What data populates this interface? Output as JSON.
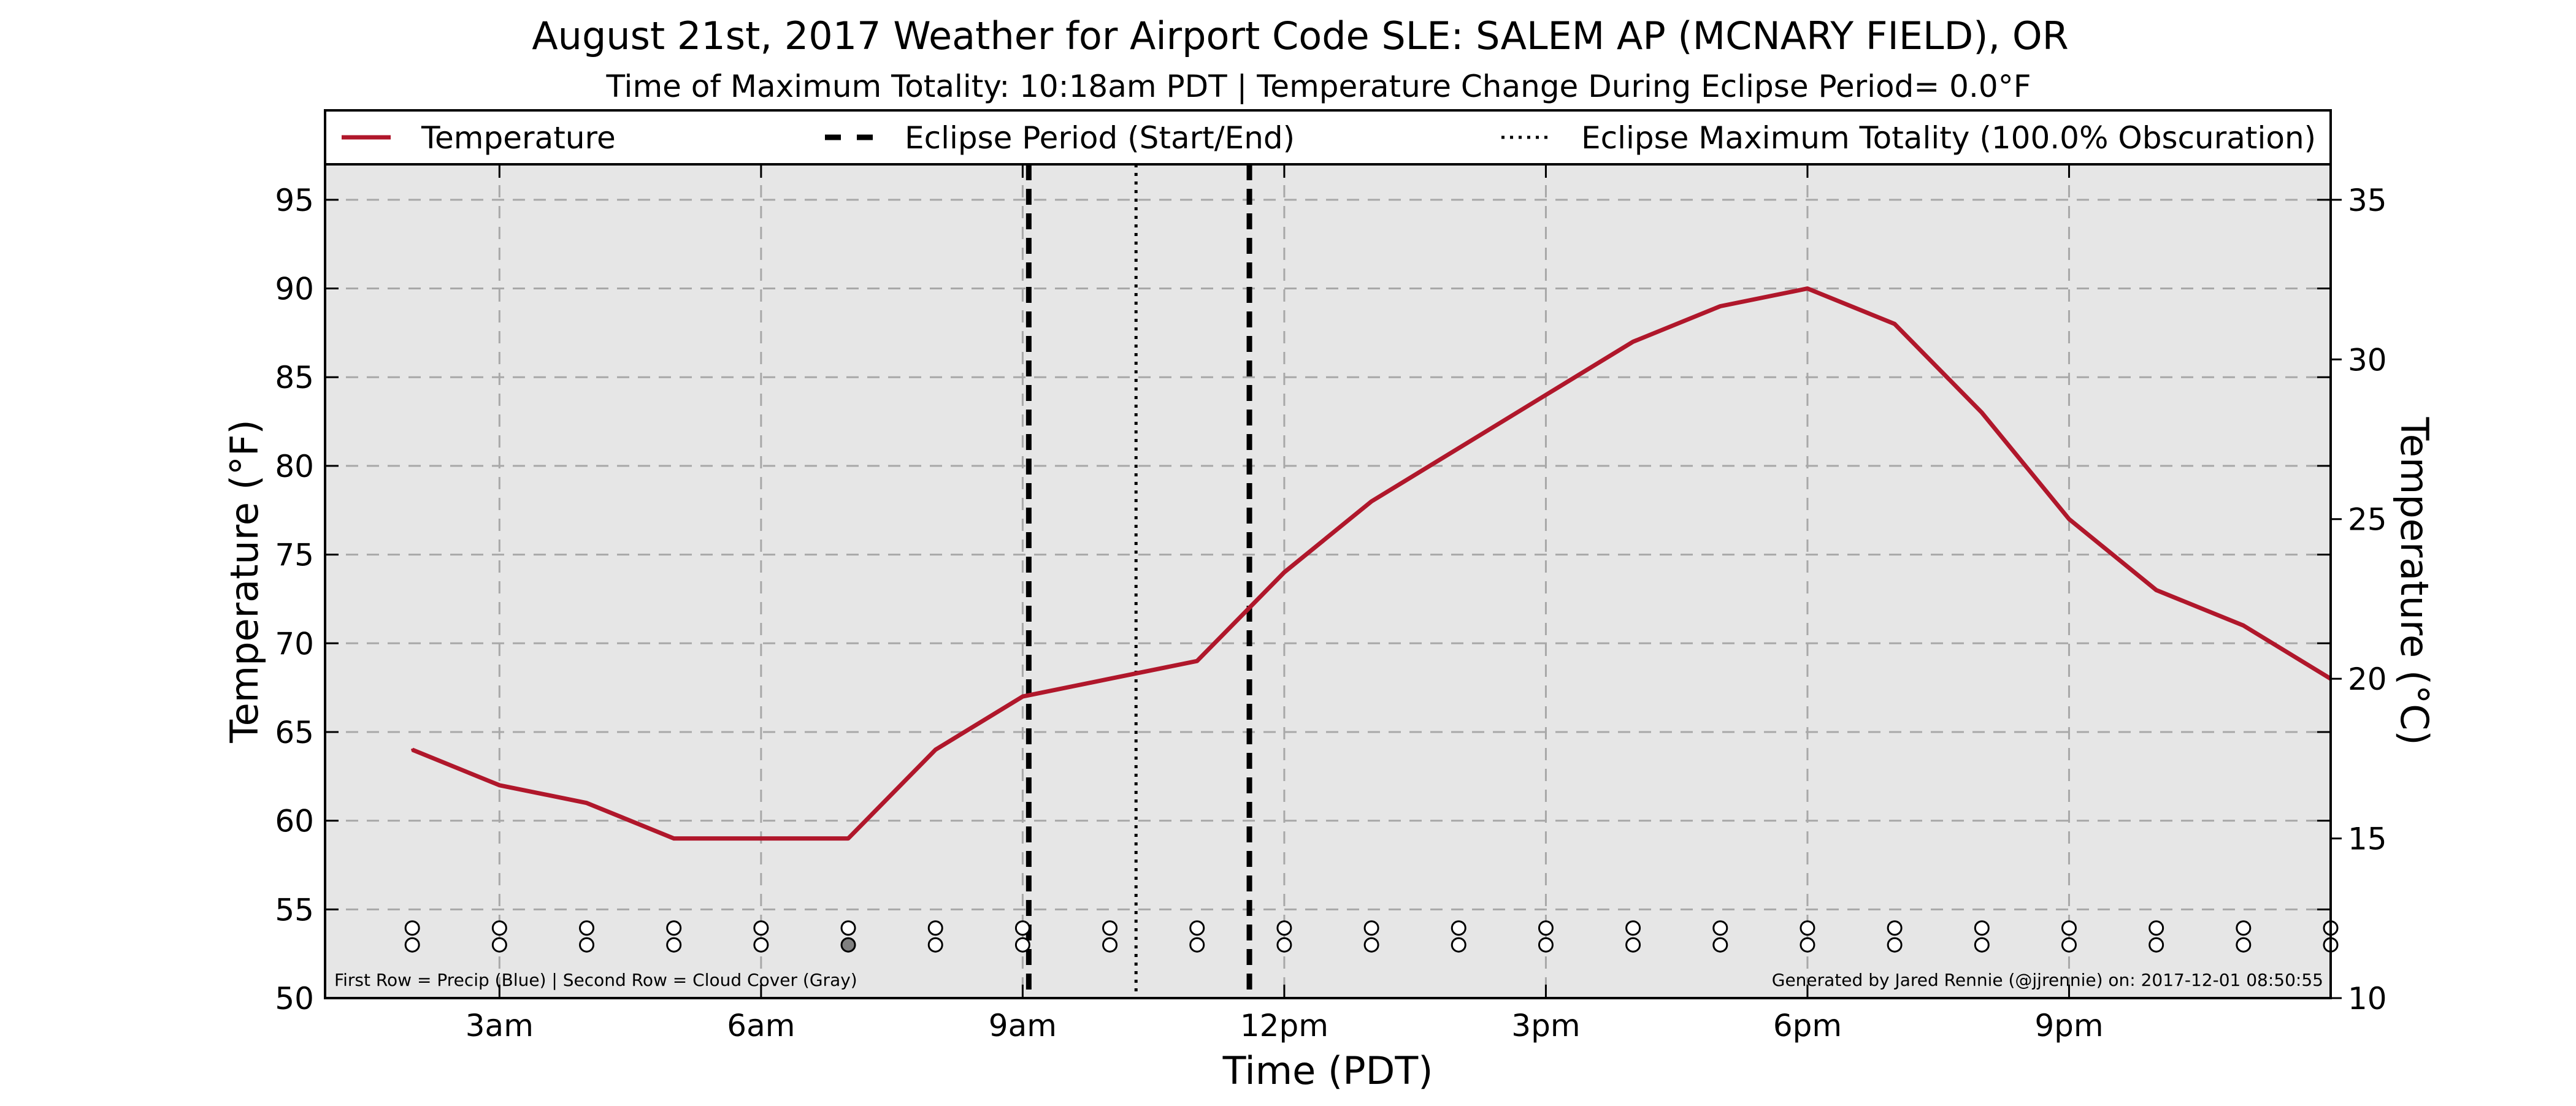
{
  "chart_data": {
    "type": "line",
    "title": "August 21st, 2017 Weather for Airport Code SLE: SALEM AP (MCNARY FIELD), OR",
    "subtitle": "Time of Maximum Totality: 10:18am PDT | Temperature Change During Eclipse Period= 0.0°F",
    "xlabel": "Time (PDT)",
    "ylabel_left": "Temperature (°F)",
    "ylabel_right": "Temperature (°C)",
    "x_unit": "hour of day (PDT)",
    "xlim": [
      1,
      24
    ],
    "ylim": [
      50,
      97
    ],
    "ylim_right_c": [
      10,
      36.11
    ],
    "x_ticks": [
      {
        "value": 3,
        "label": "3am"
      },
      {
        "value": 6,
        "label": "6am"
      },
      {
        "value": 9,
        "label": "9am"
      },
      {
        "value": 12,
        "label": "12pm"
      },
      {
        "value": 15,
        "label": "3pm"
      },
      {
        "value": 18,
        "label": "6pm"
      },
      {
        "value": 21,
        "label": "9pm"
      }
    ],
    "y_ticks_left": [
      50,
      55,
      60,
      65,
      70,
      75,
      80,
      85,
      90,
      95
    ],
    "y_ticks_right": [
      10,
      15,
      20,
      25,
      30,
      35
    ],
    "grid": true,
    "legend": {
      "placement": "top",
      "entries": [
        {
          "label": "Temperature",
          "style": "solid"
        },
        {
          "label": "Eclipse Period (Start/End)",
          "style": "dashed"
        },
        {
          "label": "Eclipse Maximum Totality (100.0% Obscuration)",
          "style": "dotted"
        }
      ]
    },
    "series": [
      {
        "name": "Temperature",
        "color": "#b0172b",
        "x": [
          2,
          3,
          4,
          5,
          6,
          7,
          8,
          9,
          10,
          11,
          12,
          13,
          14,
          15,
          16,
          17,
          18,
          19,
          20,
          21,
          22,
          23,
          24
        ],
        "values": [
          64,
          62,
          61,
          59,
          59,
          59,
          64,
          67,
          68,
          69,
          74,
          78,
          81,
          84,
          87,
          89,
          90,
          88,
          83,
          77,
          73,
          71,
          68
        ]
      }
    ],
    "eclipse_start_hour": 9.07,
    "eclipse_end_hour": 11.6,
    "eclipse_max_hour": 10.3,
    "markers": {
      "precip_row": [
        "o",
        "o",
        "o",
        "o",
        "o",
        "o",
        "o",
        "o",
        "o",
        "o",
        "o",
        "o",
        "o",
        "o",
        "o",
        "o",
        "o",
        "o",
        "o",
        "o",
        "o",
        "o",
        "o"
      ],
      "cloud_row": [
        "o",
        "o",
        "o",
        "o",
        "o",
        "filled",
        "o",
        "o",
        "o",
        "o",
        "o",
        "o",
        "o",
        "o",
        "o",
        "o",
        "o",
        "o",
        "o",
        "o",
        "o",
        "o",
        "o"
      ]
    },
    "footnote_left": "First Row = Precip (Blue) | Second Row = Cloud Cover (Gray)",
    "footnote_right": "Generated by Jared Rennie (@jjrennie) on: 2017-12-01 08:50:55"
  },
  "colors": {
    "temperature": "#b0172b",
    "plot_background": "#e6e6e6",
    "cloud_filled": "#808080"
  }
}
